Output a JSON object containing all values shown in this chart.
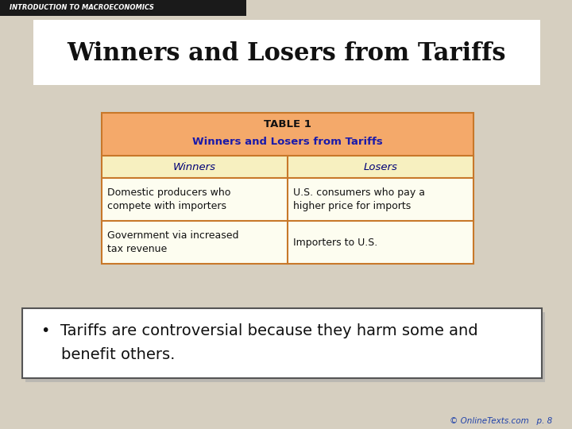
{
  "title": "Winners and Losers from Tariffs",
  "header_label": "INTRODUCTION TO MACROECONOMICS",
  "table_title_line1": "TABLE 1",
  "table_title_line2": "Winners and Losers from Tariffs",
  "col_headers": [
    "Winners",
    "Losers"
  ],
  "rows": [
    [
      "Domestic producers who\ncompete with importers",
      "U.S. consumers who pay a\nhigher price for imports"
    ],
    [
      "Government via increased\ntax revenue",
      "Importers to U.S."
    ]
  ],
  "bullet_text_line1": "•  Tariffs are controversial because they harm some and",
  "bullet_text_line2": "    benefit others.",
  "footer_text": "© OnlineTexts.com   p. 8",
  "slide_bg": "#d6cfc0",
  "title_bg": "#ffffff",
  "table_header_bg": "#f4a96a",
  "table_col_header_bg": "#f7f0c0",
  "table_row_bg": "#fdfdf0",
  "table_border": "#c8782a",
  "title_color": "#111111",
  "table_title_color": "#111111",
  "table_subtitle_color": "#1a1aaa",
  "col_header_color": "#000077",
  "row_text_color": "#111111",
  "bullet_box_bg": "#ffffff",
  "bullet_box_border": "#555555",
  "bullet_text_color": "#111111",
  "footer_color": "#2244aa",
  "header_bar_bg": "#1a1a1a",
  "header_text_color": "#ffffff",
  "shadow_color": "#aaaaaa"
}
